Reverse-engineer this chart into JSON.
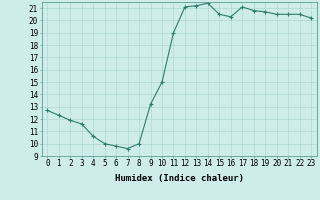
{
  "x": [
    0,
    1,
    2,
    3,
    4,
    5,
    6,
    7,
    8,
    9,
    10,
    11,
    12,
    13,
    14,
    15,
    16,
    17,
    18,
    19,
    20,
    21,
    22,
    23
  ],
  "y": [
    12.7,
    12.3,
    11.9,
    11.6,
    10.6,
    10.0,
    9.8,
    9.6,
    10.0,
    13.2,
    15.0,
    19.0,
    21.1,
    21.2,
    21.4,
    20.5,
    20.3,
    21.1,
    20.8,
    20.7,
    20.5,
    20.5,
    20.5,
    20.2
  ],
  "line_color": "#2e7d6e",
  "marker": "+",
  "marker_size": 3,
  "marker_lw": 0.8,
  "line_width": 0.8,
  "bg_color": "#ceecea",
  "grid_color": "#aed8d5",
  "xlabel": "Humidex (Indice chaleur)",
  "xlim": [
    -0.5,
    23.5
  ],
  "ylim": [
    9,
    21.5
  ],
  "yticks": [
    9,
    10,
    11,
    12,
    13,
    14,
    15,
    16,
    17,
    18,
    19,
    20,
    21
  ],
  "xtick_labels": [
    "0",
    "1",
    "2",
    "3",
    "4",
    "5",
    "6",
    "7",
    "8",
    "9",
    "10",
    "11",
    "12",
    "13",
    "14",
    "15",
    "16",
    "17",
    "18",
    "19",
    "20",
    "21",
    "22",
    "23"
  ],
  "label_fontsize": 6.5,
  "tick_fontsize": 5.5
}
